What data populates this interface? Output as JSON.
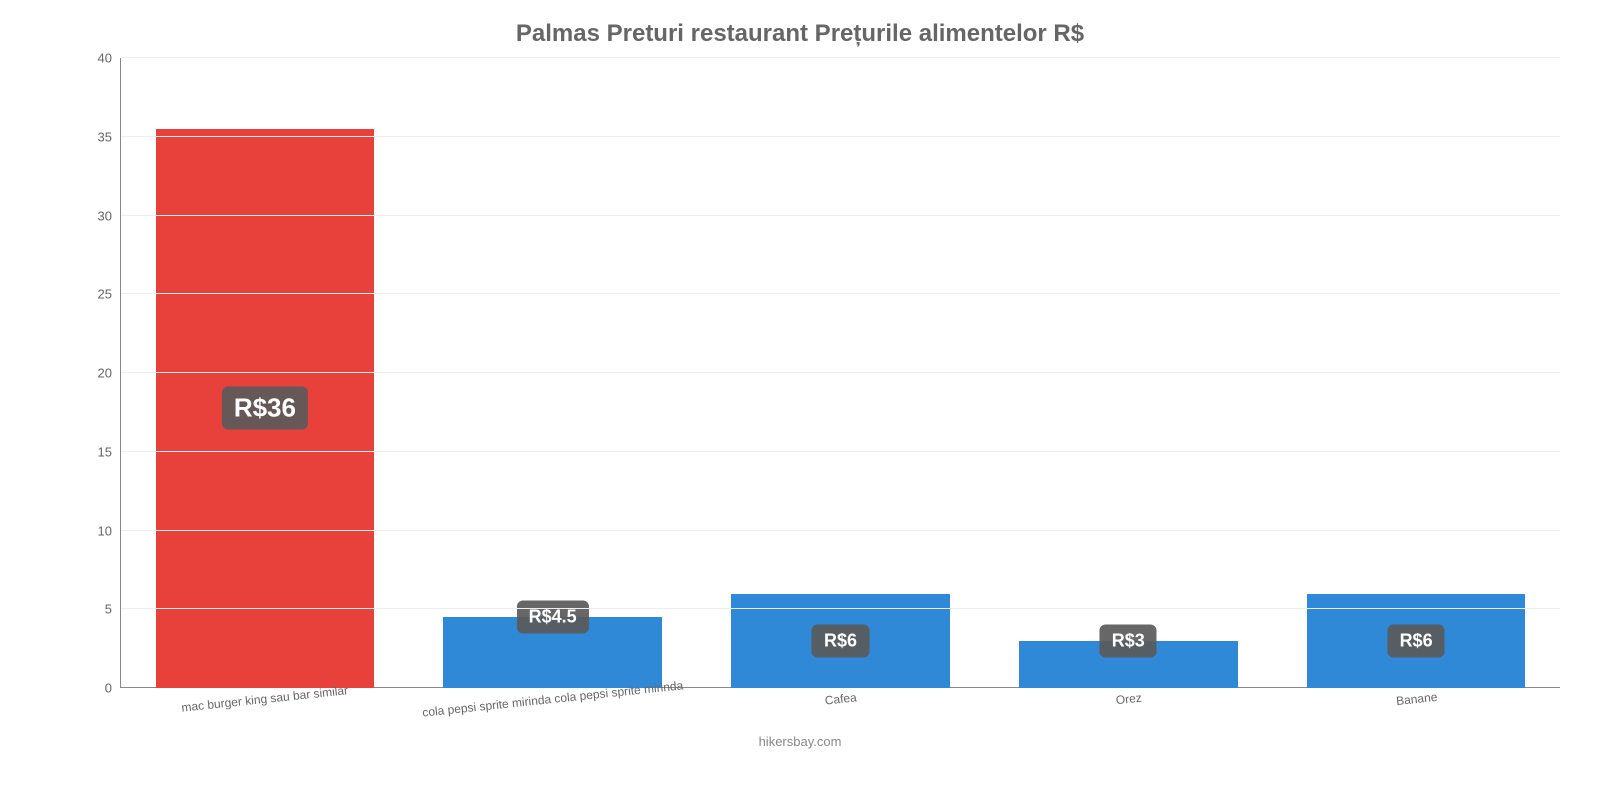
{
  "chart": {
    "type": "bar",
    "title": "Palmas Preturi restaurant Prețurile alimentelor R$",
    "title_color": "#666666",
    "title_fontsize": 24,
    "background_color": "#ffffff",
    "grid_color": "#eeeeee",
    "axis_color": "#888888",
    "x_label_color": "#666666",
    "y_label_color": "#666666",
    "x_label_fontsize": 12,
    "y_label_fontsize": 13,
    "ylim": [
      0,
      40
    ],
    "ytick_step": 5,
    "yticks": [
      0,
      5,
      10,
      15,
      20,
      25,
      30,
      35,
      40
    ],
    "bar_width": 0.76,
    "categories": [
      "mac burger king sau bar similar",
      "cola pepsi sprite mirinda cola pepsi sprite mirinda",
      "Cafea",
      "Orez",
      "Banane"
    ],
    "values": [
      35.5,
      4.5,
      6,
      3,
      6
    ],
    "value_labels": [
      "R$36",
      "R$4.5",
      "R$6",
      "R$3",
      "R$6"
    ],
    "bar_colors": [
      "#e8403a",
      "#2f89d6",
      "#2f89d6",
      "#2f89d6",
      "#2f89d6"
    ],
    "label_badge_bg": "rgba(90,90,90,0.92)",
    "label_badge_color": "#ffffff",
    "label_badge_fontsize_large": 26,
    "label_badge_fontsize_small": 18,
    "footer": "hikersbay.com",
    "footer_color": "#888888",
    "x_label_rotation_deg": -6
  }
}
